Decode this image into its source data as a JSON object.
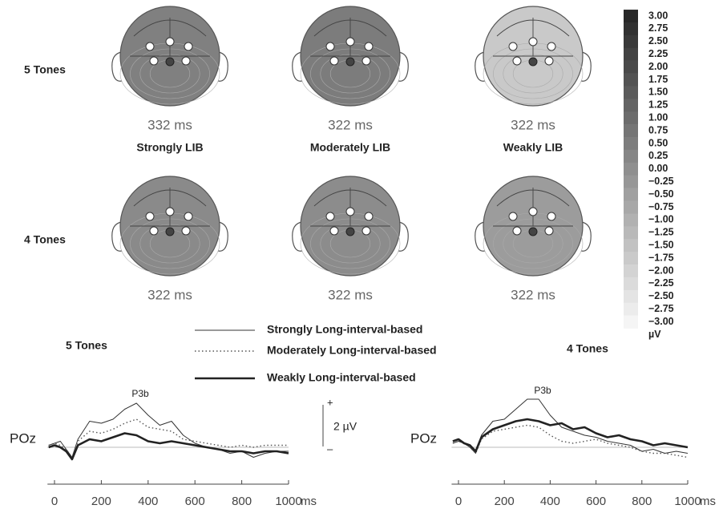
{
  "topomaps": {
    "row_labels": [
      "5 Tones",
      "4 Tones"
    ],
    "column_labels": [
      "Strongly LIB",
      "Moderately LIB",
      "Weakly LIB"
    ],
    "maps": [
      [
        {
          "time": "332 ms",
          "fill": "#808080"
        },
        {
          "time": "322 ms",
          "fill": "#7c7c7c"
        },
        {
          "time": "322 ms",
          "fill": "#c9c9c9"
        }
      ],
      [
        {
          "time": "322 ms",
          "fill": "#8a8a8a"
        },
        {
          "time": "322 ms",
          "fill": "#8c8c8c"
        },
        {
          "time": "322 ms",
          "fill": "#9c9c9c"
        }
      ]
    ]
  },
  "colorbar": {
    "ticks": [
      {
        "value": 3,
        "label": "3.00"
      },
      {
        "value": 2.75,
        "label": "2.75"
      },
      {
        "value": 2.5,
        "label": "2.50"
      },
      {
        "value": 2.25,
        "label": "2.25"
      },
      {
        "value": 2,
        "label": "2.00"
      },
      {
        "value": 1.75,
        "label": "1.75"
      },
      {
        "value": 1.5,
        "label": "1.50"
      },
      {
        "value": 1.25,
        "label": "1.25"
      },
      {
        "value": 1,
        "label": "1.00"
      },
      {
        "value": 0.75,
        "label": "0.75"
      },
      {
        "value": 0.5,
        "label": "0.50"
      },
      {
        "value": 0.25,
        "label": "0.25"
      },
      {
        "value": 0,
        "label": "0.00"
      },
      {
        "value": -0.25,
        "label": "−0.25"
      },
      {
        "value": -0.5,
        "label": "−0.50"
      },
      {
        "value": -0.75,
        "label": "−0.75"
      },
      {
        "value": -1,
        "label": "−1.00"
      },
      {
        "value": -1.25,
        "label": "−1.25"
      },
      {
        "value": -1.5,
        "label": "−1.50"
      },
      {
        "value": -1.75,
        "label": "−1.75"
      },
      {
        "value": -2,
        "label": "−2.00"
      },
      {
        "value": -2.25,
        "label": "−2.25"
      },
      {
        "value": -2.5,
        "label": "−2.50"
      },
      {
        "value": -2.75,
        "label": "−2.75"
      },
      {
        "value": -3,
        "label": "−3.00"
      }
    ],
    "unit": "µV"
  },
  "scale_bar": {
    "plus": "+",
    "label": "2 µV",
    "minus": "–"
  },
  "chart_data": [
    {
      "type": "line",
      "title": "5 Tones",
      "ylabel": "POz",
      "xlabel": "ms",
      "annotation": "P3b",
      "x": [
        -25,
        0,
        25,
        50,
        75,
        100,
        150,
        200,
        250,
        300,
        350,
        400,
        450,
        500,
        550,
        600,
        650,
        700,
        750,
        800,
        850,
        900,
        950,
        1000
      ],
      "xlim": [
        -30,
        1000
      ],
      "xticks": [
        0,
        200,
        400,
        600,
        800,
        1000
      ],
      "ylim": [
        -1,
        3
      ],
      "series": [
        {
          "name": "Strongly Long-interval-based",
          "color": "#333333",
          "style": "thin",
          "values": [
            0.1,
            0.2,
            0.3,
            -0.1,
            -0.5,
            0.4,
            1.3,
            1.2,
            1.4,
            1.9,
            2.2,
            1.6,
            1.1,
            1.3,
            0.6,
            0.2,
            0.0,
            -0.1,
            -0.3,
            -0.2,
            -0.5,
            -0.3,
            -0.2,
            -0.2
          ]
        },
        {
          "name": "Moderately Long-interval-based",
          "color": "#555555",
          "style": "dotted",
          "values": [
            0.1,
            0.2,
            0.1,
            -0.1,
            -0.5,
            0.3,
            0.8,
            0.7,
            0.9,
            1.2,
            1.4,
            1.0,
            0.9,
            0.8,
            0.4,
            0.3,
            0.2,
            0.1,
            0.0,
            0.1,
            0.0,
            0.1,
            0.1,
            0.1
          ]
        },
        {
          "name": "Weakly Long-interval-based",
          "color": "#222222",
          "style": "thick",
          "values": [
            0.0,
            0.1,
            0.0,
            -0.2,
            -0.6,
            0.1,
            0.4,
            0.3,
            0.5,
            0.7,
            0.6,
            0.3,
            0.2,
            0.3,
            0.2,
            0.1,
            0.0,
            -0.1,
            -0.2,
            -0.2,
            -0.3,
            -0.2,
            -0.2,
            -0.3
          ]
        }
      ]
    },
    {
      "type": "line",
      "title": "4 Tones",
      "ylabel": "POz",
      "xlabel": "ms",
      "annotation": "P3b",
      "x": [
        -25,
        0,
        25,
        50,
        75,
        100,
        150,
        200,
        250,
        300,
        350,
        400,
        450,
        500,
        550,
        600,
        650,
        700,
        750,
        800,
        850,
        900,
        950,
        1000
      ],
      "xlim": [
        -30,
        1000
      ],
      "xticks": [
        0,
        200,
        400,
        600,
        800,
        1000
      ],
      "ylim": [
        -1,
        3
      ],
      "series": [
        {
          "color": "#333333",
          "style": "thin",
          "values": [
            0.2,
            0.3,
            0.2,
            0.0,
            -0.3,
            0.6,
            1.3,
            1.4,
            1.9,
            2.4,
            2.4,
            1.6,
            1.0,
            0.8,
            0.6,
            0.5,
            0.3,
            0.2,
            0.1,
            -0.2,
            -0.1,
            -0.3,
            -0.2,
            -0.3
          ]
        },
        {
          "color": "#555555",
          "style": "dotted",
          "values": [
            0.2,
            0.3,
            0.2,
            0.0,
            -0.3,
            0.4,
            0.8,
            0.9,
            1.0,
            1.1,
            1.0,
            0.6,
            0.3,
            0.2,
            0.3,
            0.4,
            0.2,
            0.1,
            0.0,
            -0.2,
            -0.3,
            -0.3,
            -0.4,
            -0.5
          ]
        },
        {
          "color": "#222222",
          "style": "thick",
          "values": [
            0.3,
            0.4,
            0.2,
            0.1,
            -0.2,
            0.5,
            0.9,
            1.1,
            1.3,
            1.4,
            1.3,
            1.1,
            1.2,
            0.9,
            1.0,
            0.7,
            0.5,
            0.6,
            0.4,
            0.3,
            0.1,
            0.2,
            0.1,
            0.0
          ]
        }
      ]
    }
  ]
}
